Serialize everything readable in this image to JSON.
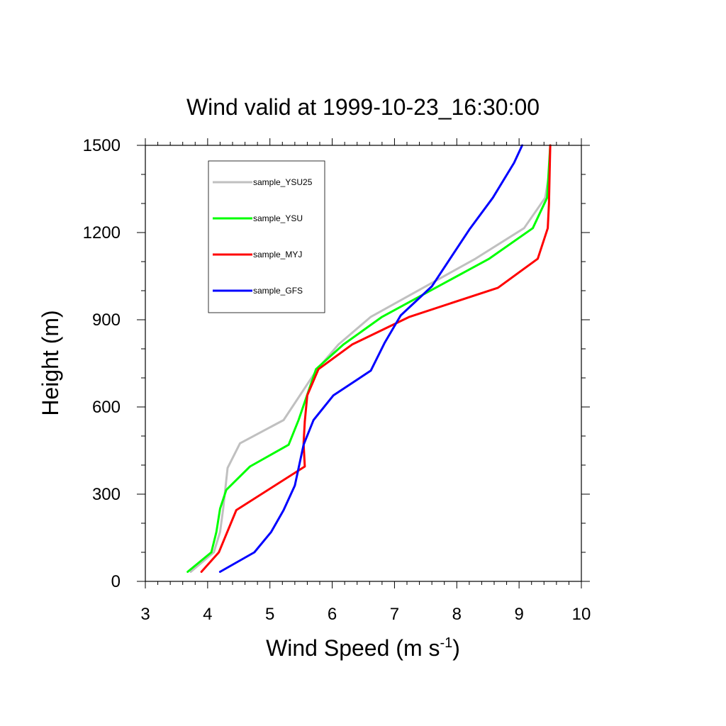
{
  "chart_data": {
    "type": "line",
    "title": "Wind valid at 1999-10-23_16:30:00",
    "xlabel": "Wind Speed (m s",
    "xlabel_sup": "-1",
    "xlabel_end": ")",
    "ylabel": "Height (m)",
    "xlim": [
      3,
      10
    ],
    "ylim": [
      0,
      1500
    ],
    "xticks": [
      3,
      4,
      5,
      6,
      7,
      8,
      9,
      10
    ],
    "xtick_labels": [
      "3",
      "4",
      "5",
      "6",
      "7",
      "8",
      "9",
      "10"
    ],
    "yticks": [
      0,
      300,
      600,
      900,
      1200,
      1500
    ],
    "ytick_labels": [
      "0",
      "300",
      "600",
      "900",
      "1200",
      "1500"
    ],
    "grid": false,
    "legend_position": "top-left",
    "series": [
      {
        "name": "sample_YSU25",
        "color": "#c0c0c0",
        "points": [
          [
            3.73,
            33
          ],
          [
            4.1,
            100
          ],
          [
            4.2,
            170
          ],
          [
            4.25,
            250
          ],
          [
            4.32,
            390
          ],
          [
            4.52,
            475
          ],
          [
            5.22,
            555
          ],
          [
            5.76,
            730
          ],
          [
            6.1,
            815
          ],
          [
            6.62,
            910
          ],
          [
            8.3,
            1110
          ],
          [
            9.08,
            1215
          ],
          [
            9.42,
            1320
          ],
          [
            9.48,
            1400
          ],
          [
            9.5,
            1500
          ]
        ]
      },
      {
        "name": "sample_YSU",
        "color": "#00ff00",
        "points": [
          [
            3.68,
            33
          ],
          [
            4.06,
            100
          ],
          [
            4.14,
            170
          ],
          [
            4.2,
            250
          ],
          [
            4.3,
            315
          ],
          [
            4.68,
            395
          ],
          [
            5.3,
            470
          ],
          [
            5.46,
            555
          ],
          [
            5.74,
            730
          ],
          [
            6.18,
            815
          ],
          [
            6.8,
            910
          ],
          [
            8.52,
            1110
          ],
          [
            9.22,
            1215
          ],
          [
            9.45,
            1320
          ],
          [
            9.5,
            1500
          ]
        ]
      },
      {
        "name": "sample_MYJ",
        "color": "#ff0000",
        "points": [
          [
            3.9,
            33
          ],
          [
            4.18,
            100
          ],
          [
            4.46,
            245
          ],
          [
            5.56,
            395
          ],
          [
            5.54,
            475
          ],
          [
            5.56,
            550
          ],
          [
            5.6,
            640
          ],
          [
            5.78,
            730
          ],
          [
            6.32,
            815
          ],
          [
            7.24,
            910
          ],
          [
            8.66,
            1010
          ],
          [
            9.3,
            1110
          ],
          [
            9.46,
            1215
          ],
          [
            9.48,
            1300
          ],
          [
            9.5,
            1500
          ]
        ]
      },
      {
        "name": "sample_GFS",
        "color": "#0000ff",
        "points": [
          [
            4.2,
            33
          ],
          [
            4.75,
            100
          ],
          [
            5.02,
            170
          ],
          [
            5.22,
            245
          ],
          [
            5.4,
            330
          ],
          [
            5.54,
            470
          ],
          [
            5.7,
            555
          ],
          [
            6.02,
            640
          ],
          [
            6.62,
            725
          ],
          [
            6.84,
            820
          ],
          [
            7.1,
            915
          ],
          [
            7.6,
            1015
          ],
          [
            8.2,
            1210
          ],
          [
            8.58,
            1320
          ],
          [
            8.92,
            1440
          ],
          [
            9.05,
            1500
          ]
        ]
      }
    ]
  }
}
